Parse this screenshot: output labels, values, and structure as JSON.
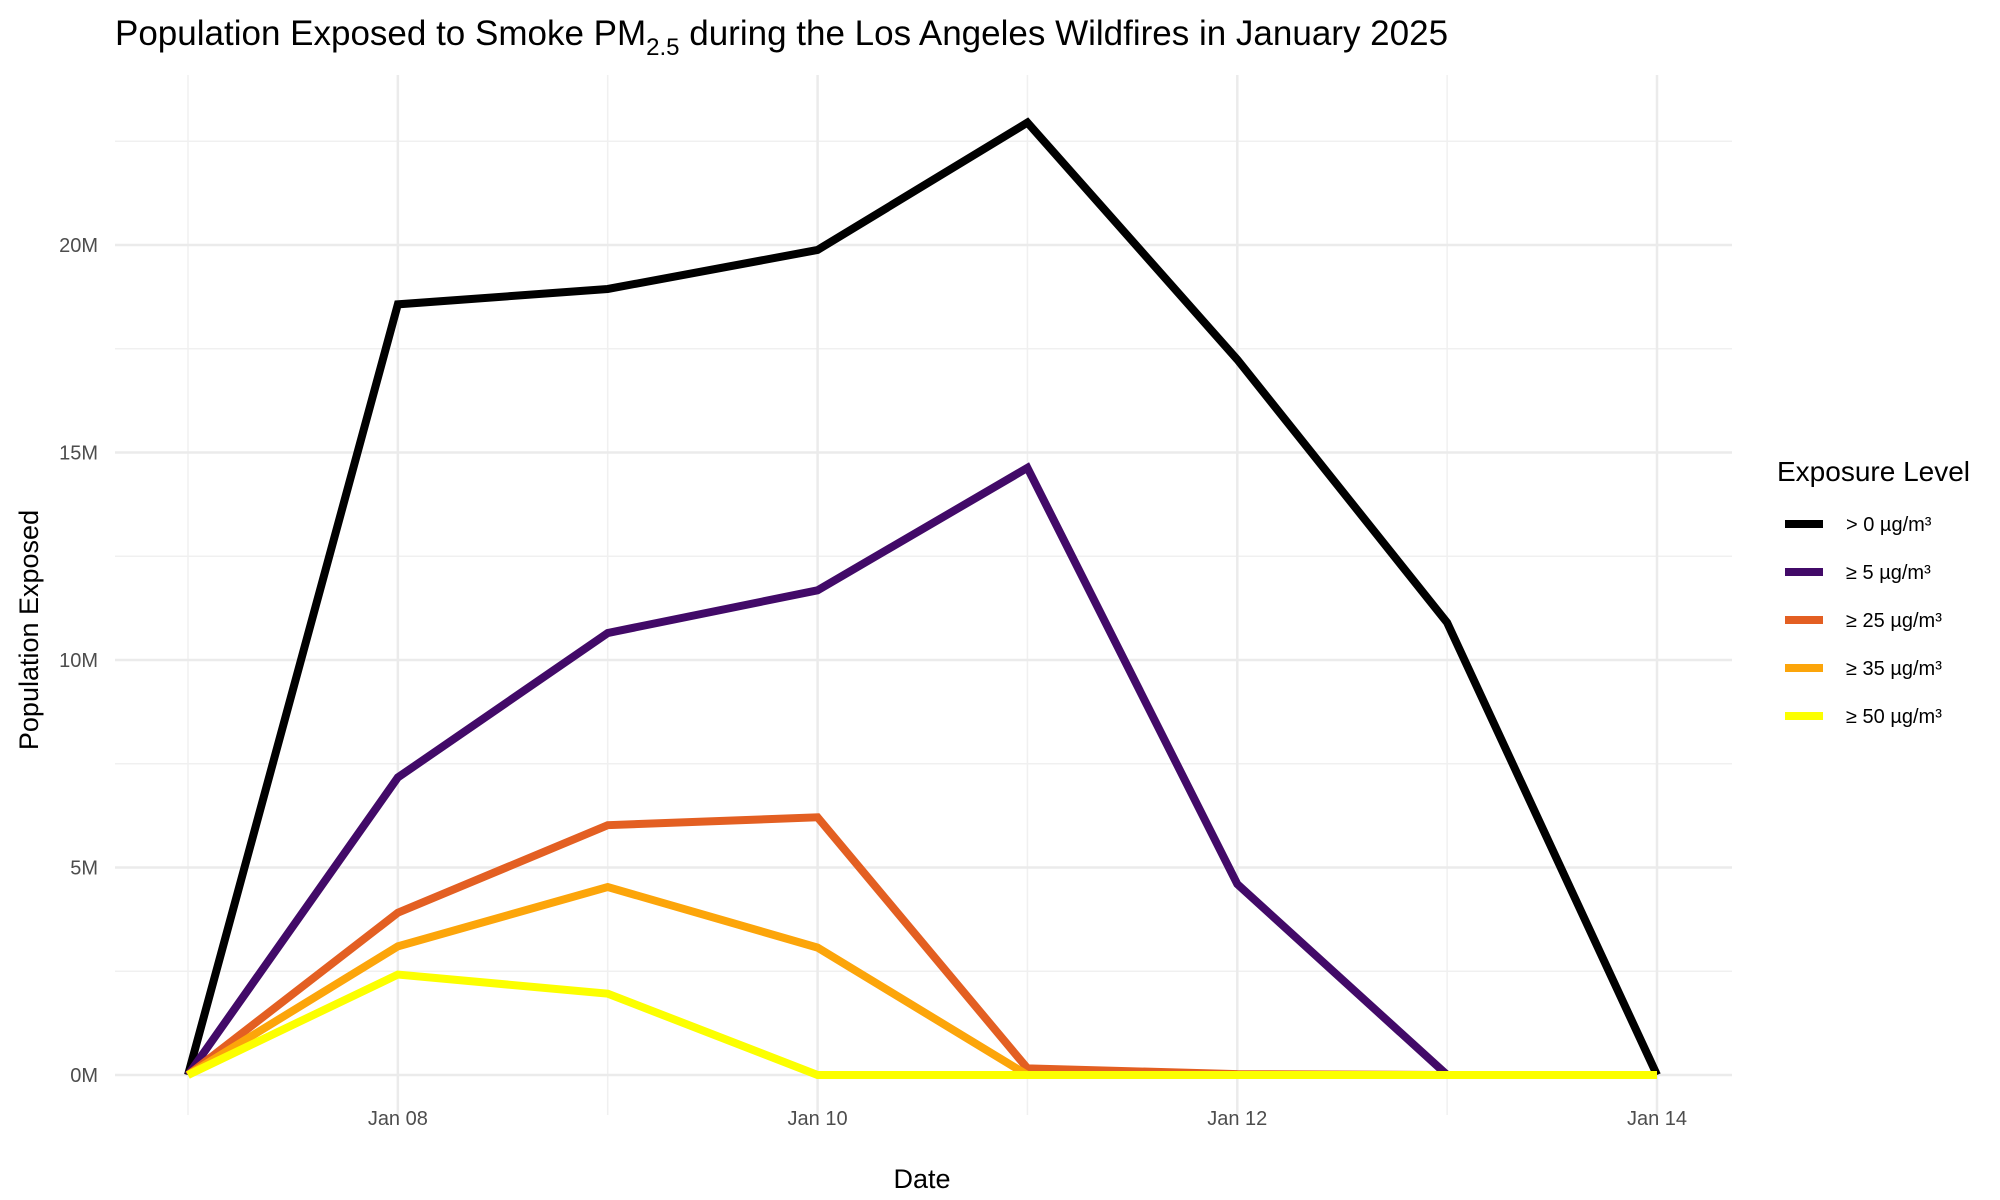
{
  "chart_data": {
    "type": "line",
    "title_prefix": "Population Exposed to Smoke PM",
    "title_subscript": "2.5",
    "title_suffix": " during the Los Angeles Wildfires in January 2025",
    "xlabel": "Date",
    "ylabel": "Population Exposed",
    "x": [
      "2025-01-07",
      "2025-01-08",
      "2025-01-09",
      "2025-01-10",
      "2025-01-11",
      "2025-01-12",
      "2025-01-13",
      "2025-01-14"
    ],
    "x_tick_labels": [
      {
        "index": 1,
        "label": "Jan 08"
      },
      {
        "index": 3,
        "label": "Jan 10"
      },
      {
        "index": 5,
        "label": "Jan 12"
      },
      {
        "index": 7,
        "label": "Jan 14"
      }
    ],
    "y_ticks": [
      0,
      5,
      10,
      15,
      20
    ],
    "y_tick_labels": [
      "0M",
      "5M",
      "10M",
      "15M",
      "20M"
    ],
    "y_unit": "millions",
    "ylim": [
      -1.2,
      23.8
    ],
    "grid": true,
    "legend_title": "Exposure Level",
    "legend_position": "right",
    "series": [
      {
        "name": "> 0 µg/m³",
        "color": "#000000",
        "values": [
          0,
          18.57,
          18.94,
          19.88,
          22.95,
          17.24,
          10.9,
          0
        ]
      },
      {
        "name": "≥ 5 µg/m³",
        "color": "#420A68",
        "values": [
          0,
          7.17,
          10.65,
          11.68,
          14.63,
          4.6,
          0,
          0
        ]
      },
      {
        "name": "≥ 25 µg/m³",
        "color": "#E35F22",
        "values": [
          0,
          3.91,
          6.02,
          6.21,
          0.16,
          0.02,
          0,
          0
        ]
      },
      {
        "name": "≥ 35 µg/m³",
        "color": "#FCA50A",
        "values": [
          0,
          3.1,
          4.53,
          3.07,
          0,
          0,
          0,
          0
        ]
      },
      {
        "name": "≥ 50 µg/m³",
        "color": "#FCFF00",
        "values": [
          0,
          2.42,
          1.96,
          0,
          0,
          0,
          0,
          0
        ]
      }
    ]
  }
}
